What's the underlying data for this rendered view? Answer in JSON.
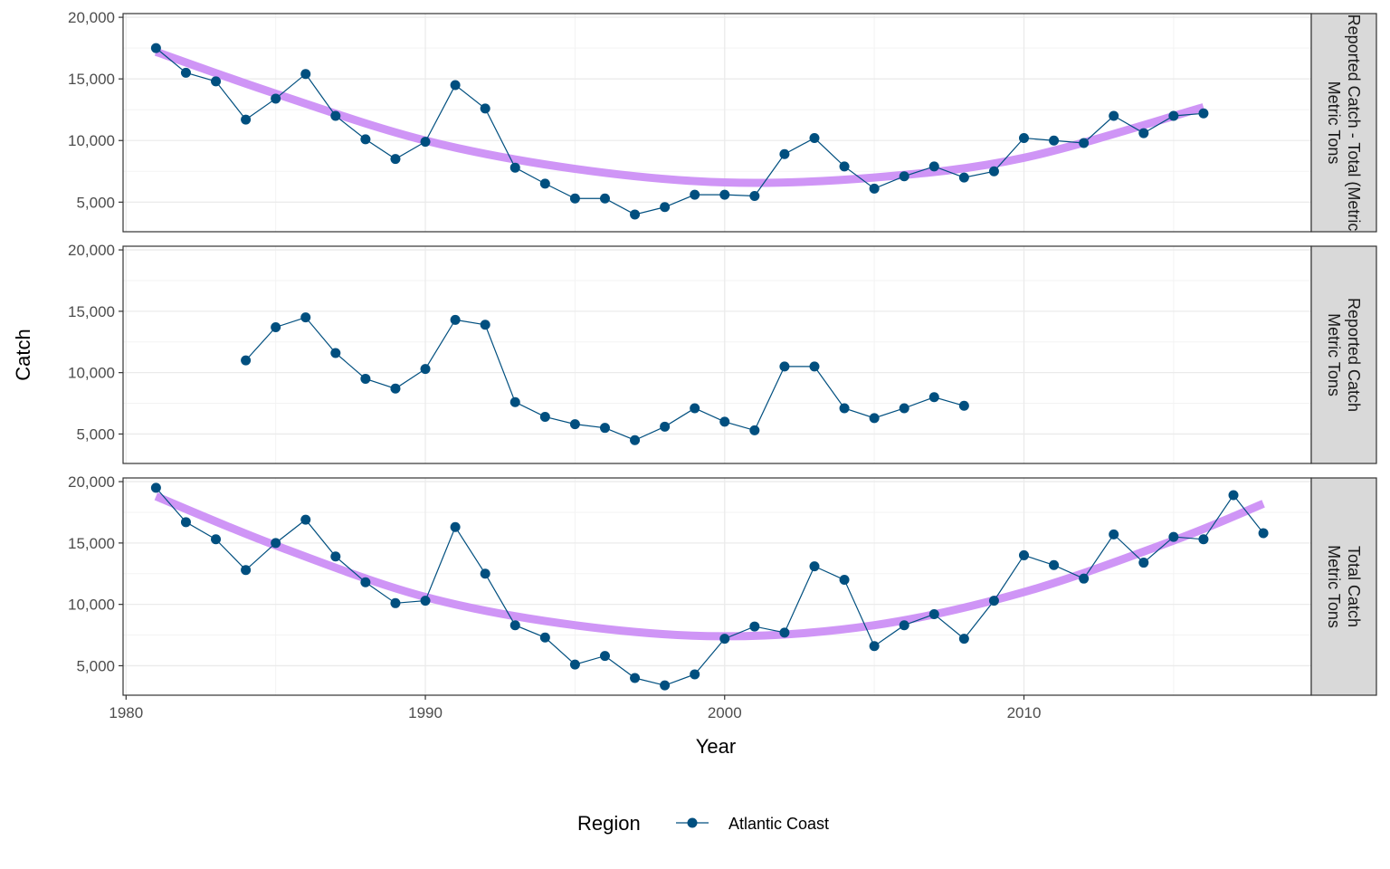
{
  "chart_data": {
    "type": "line",
    "xlabel": "Year",
    "ylabel": "Catch",
    "xlim": [
      1979.9,
      2019.6
    ],
    "ylim": [
      2600,
      20300
    ],
    "x_ticks": [
      1980,
      1990,
      2000,
      2010
    ],
    "x_tick_labels": [
      "1980",
      "1990",
      "2000",
      "2010"
    ],
    "y_ticks": [
      5000,
      10000,
      15000,
      20000
    ],
    "y_tick_labels": [
      "5,000",
      "10,000",
      "15,000",
      "20,000"
    ],
    "grid": true,
    "legend": {
      "position": "bottom",
      "title": "Region",
      "entries": [
        "Atlantic Coast"
      ]
    },
    "colors": {
      "series": "#004f7f",
      "trend": "#cc8ff5",
      "strip": "#d9d9d9",
      "grid": "#ebebeb"
    },
    "panels": [
      {
        "strip_lines": [
          "Reported Catch - Total (Metric",
          "Metric Tons"
        ],
        "series": [
          {
            "name": "Atlantic Coast",
            "x": [
              1981,
              1982,
              1983,
              1984,
              1985,
              1986,
              1987,
              1988,
              1989,
              1990,
              1991,
              1992,
              1993,
              1994,
              1995,
              1996,
              1997,
              1998,
              1999,
              2000,
              2001,
              2002,
              2003,
              2004,
              2005,
              2006,
              2007,
              2008,
              2009,
              2010,
              2011,
              2012,
              2013,
              2014,
              2015,
              2016
            ],
            "y": [
              17500,
              15500,
              14800,
              11700,
              13400,
              15400,
              12000,
              10100,
              8500,
              9900,
              14500,
              12600,
              7800,
              6500,
              5300,
              5300,
              4000,
              4600,
              5600,
              5600,
              5500,
              8900,
              10200,
              7900,
              6100,
              7100,
              7900,
              7000,
              7500,
              10200,
              10000,
              9800,
              12000,
              10600,
              12000,
              12200
            ]
          }
        ],
        "trend": {
          "x": [
            1981,
            1985,
            1990,
            1995,
            2000,
            2005,
            2010,
            2016
          ],
          "y": [
            17200,
            13800,
            10000,
            7700,
            6600,
            7000,
            8600,
            12700
          ]
        }
      },
      {
        "strip_lines": [
          "Reported Catch",
          "Metric Tons"
        ],
        "series": [
          {
            "name": "Atlantic Coast",
            "x": [
              1984,
              1985,
              1986,
              1987,
              1988,
              1989,
              1990,
              1991,
              1992,
              1993,
              1994,
              1995,
              1996,
              1997,
              1998,
              1999,
              2000,
              2001,
              2002,
              2003,
              2004,
              2005,
              2006,
              2007,
              2008
            ],
            "y": [
              11000,
              13700,
              14500,
              11600,
              9500,
              8700,
              10300,
              14300,
              13900,
              7600,
              6400,
              5800,
              5500,
              4500,
              5600,
              7100,
              6000,
              5300,
              10500,
              10500,
              7100,
              6300,
              7100,
              8000,
              7300
            ]
          }
        ]
      },
      {
        "strip_lines": [
          "Total Catch",
          "Metric Tons"
        ],
        "series": [
          {
            "name": "Atlantic Coast",
            "x": [
              1981,
              1982,
              1983,
              1984,
              1985,
              1986,
              1987,
              1988,
              1989,
              1990,
              1991,
              1992,
              1993,
              1994,
              1995,
              1996,
              1997,
              1998,
              1999,
              2000,
              2001,
              2002,
              2003,
              2004,
              2005,
              2006,
              2007,
              2008,
              2009,
              2010,
              2011,
              2012,
              2013,
              2014,
              2015,
              2016,
              2017,
              2018
            ],
            "y": [
              19500,
              16700,
              15300,
              12800,
              15000,
              16900,
              13900,
              11800,
              10100,
              10300,
              16300,
              12500,
              8300,
              7300,
              5100,
              5800,
              4000,
              3400,
              4300,
              7200,
              8200,
              7700,
              13100,
              12000,
              6600,
              8300,
              9200,
              7200,
              10300,
              14000,
              13200,
              12100,
              15700,
              13400,
              15500,
              15300,
              18900,
              15800
            ]
          },
          {
            "name": "trend"
          }
        ],
        "trend": {
          "x": [
            1981,
            1985,
            1990,
            1995,
            2000,
            2005,
            2010,
            2015,
            2018
          ],
          "y": [
            18800,
            14800,
            10600,
            8300,
            7400,
            8300,
            11000,
            15200,
            18200
          ]
        }
      }
    ]
  }
}
